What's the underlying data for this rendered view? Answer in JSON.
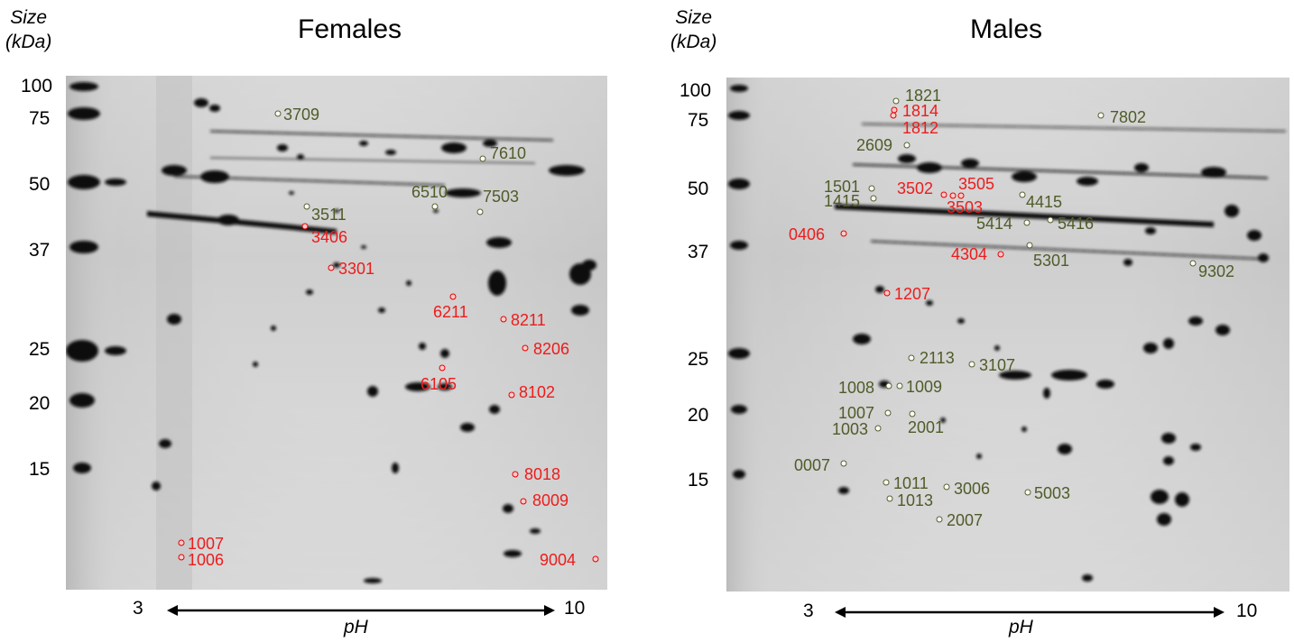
{
  "panels": [
    {
      "title": "Females",
      "size_label_line1": "Size",
      "size_label_line2": "(kDa)",
      "y_ticks": [
        "100",
        "75",
        "50",
        "37",
        "25",
        "20",
        "15"
      ],
      "axis": {
        "min": "3",
        "max": "10",
        "label": "pH"
      },
      "spots": [
        {
          "id": "3709",
          "color": "green"
        },
        {
          "id": "7610",
          "color": "green"
        },
        {
          "id": "6510",
          "color": "green"
        },
        {
          "id": "7503",
          "color": "green"
        },
        {
          "id": "3511",
          "color": "green"
        },
        {
          "id": "3406",
          "color": "red"
        },
        {
          "id": "3301",
          "color": "red"
        },
        {
          "id": "6211",
          "color": "red"
        },
        {
          "id": "8211",
          "color": "red"
        },
        {
          "id": "8206",
          "color": "red"
        },
        {
          "id": "6105",
          "color": "red"
        },
        {
          "id": "8102",
          "color": "red"
        },
        {
          "id": "8018",
          "color": "red"
        },
        {
          "id": "8009",
          "color": "red"
        },
        {
          "id": "1007",
          "color": "red"
        },
        {
          "id": "1006",
          "color": "red"
        },
        {
          "id": "9004",
          "color": "red"
        }
      ]
    },
    {
      "title": "Males",
      "size_label_line1": "Size",
      "size_label_line2": "(kDa)",
      "y_ticks": [
        "100",
        "75",
        "50",
        "37",
        "25",
        "20",
        "15"
      ],
      "axis": {
        "min": "3",
        "max": "10",
        "label": "pH"
      },
      "spots": [
        {
          "id": "1821",
          "color": "green"
        },
        {
          "id": "1814",
          "color": "red"
        },
        {
          "id": "1812",
          "color": "red"
        },
        {
          "id": "7802",
          "color": "green"
        },
        {
          "id": "2609",
          "color": "green"
        },
        {
          "id": "1501",
          "color": "green"
        },
        {
          "id": "1415",
          "color": "green"
        },
        {
          "id": "3502",
          "color": "red"
        },
        {
          "id": "3505",
          "color": "red"
        },
        {
          "id": "3503",
          "color": "red"
        },
        {
          "id": "4415",
          "color": "green"
        },
        {
          "id": "5414",
          "color": "green"
        },
        {
          "id": "5416",
          "color": "green"
        },
        {
          "id": "0406",
          "color": "red"
        },
        {
          "id": "4304",
          "color": "red"
        },
        {
          "id": "5301",
          "color": "green"
        },
        {
          "id": "9302",
          "color": "green"
        },
        {
          "id": "1207",
          "color": "red"
        },
        {
          "id": "2113",
          "color": "green"
        },
        {
          "id": "3107",
          "color": "green"
        },
        {
          "id": "1008",
          "color": "green"
        },
        {
          "id": "1009",
          "color": "green"
        },
        {
          "id": "1007",
          "color": "green"
        },
        {
          "id": "1003",
          "color": "green"
        },
        {
          "id": "2001",
          "color": "green"
        },
        {
          "id": "0007",
          "color": "green"
        },
        {
          "id": "1011",
          "color": "green"
        },
        {
          "id": "1013",
          "color": "green"
        },
        {
          "id": "3006",
          "color": "green"
        },
        {
          "id": "5003",
          "color": "green"
        },
        {
          "id": "2007",
          "color": "green"
        }
      ]
    }
  ]
}
